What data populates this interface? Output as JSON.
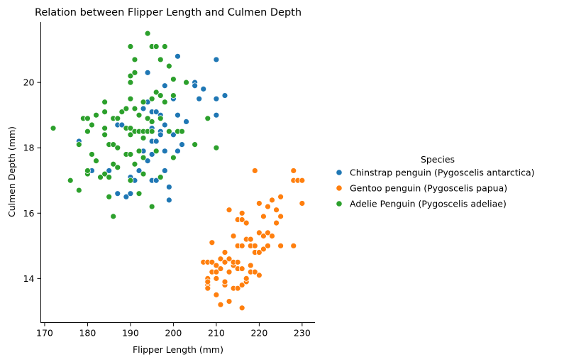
{
  "chart_data": {
    "type": "scatter",
    "title": "Relation between Flipper Length and Culmen Depth",
    "xlabel": "Flipper Length (mm)",
    "ylabel": "Culmen Depth (mm)",
    "xlim": [
      169.1,
      233
    ],
    "ylim": [
      12.65,
      21.85
    ],
    "xticks": [
      170,
      180,
      190,
      200,
      210,
      220,
      230
    ],
    "yticks": [
      14,
      16,
      18,
      20
    ],
    "grid": false,
    "legend_title": "Species",
    "legend_position": "right",
    "series": [
      {
        "name": "Chinstrap penguin (Pygoscelis antarctica)",
        "color": "#1f77b4",
        "points": [
          [
            178,
            18.2
          ],
          [
            181,
            17.3
          ],
          [
            185,
            17.3
          ],
          [
            187,
            18.7
          ],
          [
            187,
            16.6
          ],
          [
            188,
            18.7
          ],
          [
            189,
            16.5
          ],
          [
            190,
            17.1
          ],
          [
            190,
            16.6
          ],
          [
            191,
            17.0
          ],
          [
            192,
            17.3
          ],
          [
            193,
            19.2
          ],
          [
            193,
            18.3
          ],
          [
            193,
            17.9
          ],
          [
            193,
            19.4
          ],
          [
            194,
            20.3
          ],
          [
            194,
            17.6
          ],
          [
            194,
            19.4
          ],
          [
            195,
            18.6
          ],
          [
            195,
            17.8
          ],
          [
            195,
            19.1
          ],
          [
            195,
            18.2
          ],
          [
            195,
            17.0
          ],
          [
            196,
            19.1
          ],
          [
            196,
            18.2
          ],
          [
            196,
            17.0
          ],
          [
            197,
            18.9
          ],
          [
            197,
            18.5
          ],
          [
            197,
            19.0
          ],
          [
            197,
            18.4
          ],
          [
            198,
            19.9
          ],
          [
            198,
            18.7
          ],
          [
            198,
            17.3
          ],
          [
            198,
            17.9
          ],
          [
            199,
            16.8
          ],
          [
            199,
            16.4
          ],
          [
            200,
            19.5
          ],
          [
            200,
            18.4
          ],
          [
            201,
            17.9
          ],
          [
            201,
            20.8
          ],
          [
            201,
            19.0
          ],
          [
            202,
            18.1
          ],
          [
            202,
            18.1
          ],
          [
            203,
            18.8
          ],
          [
            205,
            20.0
          ],
          [
            205,
            19.9
          ],
          [
            206,
            19.5
          ],
          [
            207,
            19.8
          ],
          [
            210,
            20.7
          ],
          [
            210,
            19.5
          ],
          [
            210,
            19.0
          ],
          [
            212,
            19.6
          ]
        ]
      },
      {
        "name": "Gentoo penguin (Pygoscelis papua)",
        "color": "#ff7f0e",
        "points": [
          [
            207,
            14.5
          ],
          [
            208,
            14.5
          ],
          [
            208,
            13.8
          ],
          [
            208,
            14.0
          ],
          [
            208,
            13.7
          ],
          [
            208,
            13.9
          ],
          [
            209,
            15.1
          ],
          [
            209,
            14.2
          ],
          [
            209,
            14.5
          ],
          [
            210,
            13.5
          ],
          [
            210,
            14.2
          ],
          [
            210,
            14.0
          ],
          [
            210,
            14.4
          ],
          [
            211,
            13.2
          ],
          [
            211,
            14.6
          ],
          [
            211,
            14.3
          ],
          [
            212,
            14.8
          ],
          [
            212,
            13.8
          ],
          [
            212,
            14.5
          ],
          [
            212,
            13.9
          ],
          [
            213,
            14.6
          ],
          [
            213,
            14.2
          ],
          [
            213,
            13.3
          ],
          [
            213,
            16.1
          ],
          [
            214,
            13.7
          ],
          [
            214,
            15.3
          ],
          [
            214,
            14.4
          ],
          [
            214,
            14.5
          ],
          [
            215,
            13.7
          ],
          [
            215,
            14.5
          ],
          [
            215,
            14.3
          ],
          [
            215,
            15.0
          ],
          [
            215,
            15.8
          ],
          [
            216,
            15.0
          ],
          [
            216,
            13.8
          ],
          [
            216,
            16.0
          ],
          [
            216,
            13.1
          ],
          [
            216,
            14.3
          ],
          [
            216,
            15.8
          ],
          [
            216,
            13.8
          ],
          [
            217,
            15.7
          ],
          [
            217,
            13.9
          ],
          [
            217,
            14.0
          ],
          [
            217,
            15.2
          ],
          [
            218,
            14.4
          ],
          [
            218,
            15.2
          ],
          [
            218,
            15.0
          ],
          [
            218,
            14.2
          ],
          [
            219,
            14.8
          ],
          [
            219,
            17.3
          ],
          [
            219,
            14.2
          ],
          [
            219,
            15.0
          ],
          [
            220,
            14.8
          ],
          [
            220,
            15.4
          ],
          [
            220,
            16.3
          ],
          [
            220,
            14.1
          ],
          [
            221,
            15.3
          ],
          [
            221,
            14.9
          ],
          [
            221,
            15.9
          ],
          [
            222,
            16.2
          ],
          [
            222,
            15.4
          ],
          [
            222,
            15.0
          ],
          [
            223,
            16.4
          ],
          [
            223,
            15.3
          ],
          [
            224,
            16.1
          ],
          [
            224,
            15.7
          ],
          [
            225,
            16.5
          ],
          [
            225,
            15.9
          ],
          [
            225,
            15.0
          ],
          [
            228,
            17.3
          ],
          [
            228,
            17.0
          ],
          [
            228,
            15.0
          ],
          [
            229,
            17.0
          ],
          [
            230,
            16.3
          ],
          [
            230,
            17.0
          ]
        ]
      },
      {
        "name": "Adelie Penguin (Pygoscelis adeliae)",
        "color": "#2ca02c",
        "points": [
          [
            172,
            18.6
          ],
          [
            176,
            17.0
          ],
          [
            178,
            18.1
          ],
          [
            178,
            16.7
          ],
          [
            179,
            18.9
          ],
          [
            180,
            18.5
          ],
          [
            180,
            18.9
          ],
          [
            180,
            17.2
          ],
          [
            180,
            17.3
          ],
          [
            181,
            18.7
          ],
          [
            181,
            17.8
          ],
          [
            182,
            17.6
          ],
          [
            182,
            19.0
          ],
          [
            183,
            17.1
          ],
          [
            184,
            19.4
          ],
          [
            184,
            19.1
          ],
          [
            184,
            18.4
          ],
          [
            184,
            18.6
          ],
          [
            184,
            17.2
          ],
          [
            185,
            18.1
          ],
          [
            185,
            17.1
          ],
          [
            185,
            16.5
          ],
          [
            186,
            18.9
          ],
          [
            186,
            18.1
          ],
          [
            186,
            17.5
          ],
          [
            186,
            15.9
          ],
          [
            187,
            18.9
          ],
          [
            187,
            18.0
          ],
          [
            187,
            17.4
          ],
          [
            188,
            19.1
          ],
          [
            189,
            19.2
          ],
          [
            189,
            18.6
          ],
          [
            189,
            17.8
          ],
          [
            190,
            21.1
          ],
          [
            190,
            20.2
          ],
          [
            190,
            20.0
          ],
          [
            190,
            19.5
          ],
          [
            190,
            18.6
          ],
          [
            190,
            18.4
          ],
          [
            190,
            17.8
          ],
          [
            190,
            17.0
          ],
          [
            191,
            20.7
          ],
          [
            191,
            20.3
          ],
          [
            191,
            18.5
          ],
          [
            191,
            19.2
          ],
          [
            191,
            17.5
          ],
          [
            192,
            19.0
          ],
          [
            192,
            18.5
          ],
          [
            192,
            17.9
          ],
          [
            192,
            16.6
          ],
          [
            193,
            19.4
          ],
          [
            193,
            18.3
          ],
          [
            193,
            18.5
          ],
          [
            193,
            17.7
          ],
          [
            193,
            17.2
          ],
          [
            194,
            21.5
          ],
          [
            194,
            18.9
          ],
          [
            194,
            18.5
          ],
          [
            195,
            21.1
          ],
          [
            195,
            19.5
          ],
          [
            195,
            18.8
          ],
          [
            195,
            18.5
          ],
          [
            195,
            16.2
          ],
          [
            196,
            21.1
          ],
          [
            196,
            19.7
          ],
          [
            196,
            17.9
          ],
          [
            197,
            20.7
          ],
          [
            197,
            19.6
          ],
          [
            197,
            18.9
          ],
          [
            197,
            17.1
          ],
          [
            198,
            21.1
          ],
          [
            198,
            19.4
          ],
          [
            199,
            20.5
          ],
          [
            199,
            18.5
          ],
          [
            200,
            20.1
          ],
          [
            200,
            19.6
          ],
          [
            200,
            17.7
          ],
          [
            201,
            18.5
          ],
          [
            202,
            18.5
          ],
          [
            203,
            20.0
          ],
          [
            205,
            18.1
          ],
          [
            208,
            18.9
          ],
          [
            210,
            18.0
          ]
        ]
      }
    ]
  }
}
